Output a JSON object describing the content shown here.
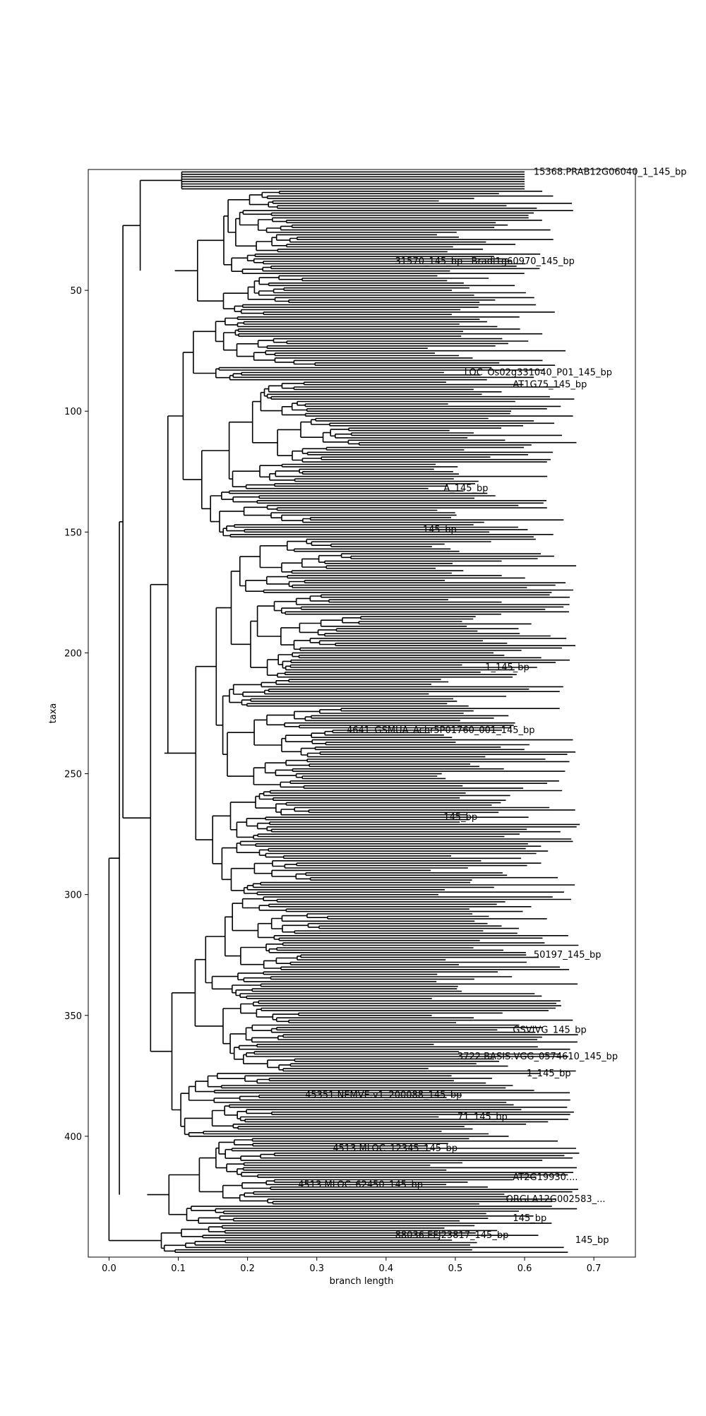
{
  "chart_data": {
    "type": "dendrogram",
    "title": "",
    "xlabel": "branch length",
    "ylabel": "taxa",
    "xlim": [
      -0.03,
      0.76
    ],
    "ylim": [
      450,
      0
    ],
    "grid": false,
    "x_ticks": [
      0.0,
      0.1,
      0.2,
      0.3,
      0.4,
      0.5,
      0.6,
      0.7
    ],
    "x_tick_labels": [
      "0.0",
      "0.1",
      "0.2",
      "0.3",
      "0.4",
      "0.5",
      "0.6",
      "0.7"
    ],
    "y_ticks": [
      50,
      100,
      150,
      200,
      250,
      300,
      350,
      400
    ],
    "y_tick_labels": [
      "50",
      "100",
      "150",
      "200",
      "250",
      "300",
      "350",
      "400"
    ],
    "n_taxa": 448,
    "line_color": "#000000",
    "readable_leaf_labels": [
      {
        "taxon": 1,
        "x": 0.61,
        "text": "15368.PRAB12G06040_1_145_bp"
      },
      {
        "taxon": 38,
        "x": 0.41,
        "text": "31570_145_bp"
      },
      {
        "taxon": 38,
        "x": 0.52,
        "text": "Bradi1g60970_145_bp"
      },
      {
        "taxon": 84,
        "x": 0.51,
        "text": "LOC_Os02g331040_P01_145_bp"
      },
      {
        "taxon": 89,
        "x": 0.58,
        "text": "AT1G75_145_bp"
      },
      {
        "taxon": 132,
        "x": 0.48,
        "text": "A_145_bp"
      },
      {
        "taxon": 149,
        "x": 0.45,
        "text": "145_bp"
      },
      {
        "taxon": 206,
        "x": 0.54,
        "text": "1_145_bp"
      },
      {
        "taxon": 232,
        "x": 0.34,
        "text": "4641_GSMUA_Achr5P01760_001_145_bp"
      },
      {
        "taxon": 268,
        "x": 0.48,
        "text": "145_bp"
      },
      {
        "taxon": 325,
        "x": 0.61,
        "text": "50197_145_bp"
      },
      {
        "taxon": 356,
        "x": 0.58,
        "text": "GSVIVG_145_bp"
      },
      {
        "taxon": 367,
        "x": 0.5,
        "text": "3722.BASIS.VGG_0574610_145_bp"
      },
      {
        "taxon": 374,
        "x": 0.6,
        "text": "1_145_bp"
      },
      {
        "taxon": 383,
        "x": 0.28,
        "text": "45351.NEMVE.v1_200088_145_bp"
      },
      {
        "taxon": 392,
        "x": 0.5,
        "text": "71_145_bp"
      },
      {
        "taxon": 405,
        "x": 0.32,
        "text": "4513.MLOC_12345_145_bp"
      },
      {
        "taxon": 417,
        "x": 0.58,
        "text": "AT2G19930...."
      },
      {
        "taxon": 420,
        "x": 0.27,
        "text": "4513.MLOC_62450_145_bp"
      },
      {
        "taxon": 426,
        "x": 0.57,
        "text": "ORGLA12G002583_..."
      },
      {
        "taxon": 434,
        "x": 0.58,
        "text": "145_bp"
      },
      {
        "taxon": 441,
        "x": 0.41,
        "text": "88036.EFJ23817_145_bp"
      },
      {
        "taxon": 443,
        "x": 0.67,
        "text": "145_bp"
      }
    ],
    "topology": {
      "root": 0.0,
      "root_split": [
        {
          "taxa": [
            2,
            436
          ],
          "node": 0.015
        },
        {
          "taxa": [
            437,
            448
          ],
          "node": 0.045
        }
      ],
      "top_clades": [
        {
          "taxa": [
            1,
            8
          ],
          "node": 0.045,
          "branches": [
            0.105,
            0.6
          ]
        },
        {
          "taxa": [
            9,
            60
          ],
          "node": 0.095
        },
        {
          "taxa": [
            61,
            152
          ],
          "node": 0.085
        },
        {
          "taxa": [
            153,
            300
          ],
          "node": 0.08
        },
        {
          "taxa": [
            301,
            400
          ],
          "node": 0.06
        },
        {
          "taxa": [
            401,
            436
          ],
          "node": 0.055
        }
      ]
    }
  }
}
